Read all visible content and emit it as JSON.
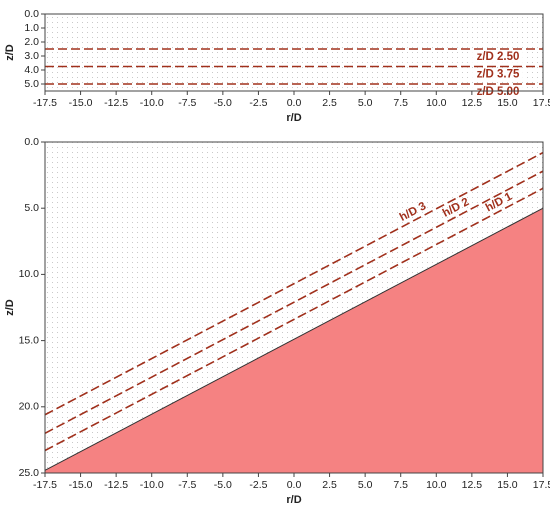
{
  "chart_data": [
    {
      "type": "line",
      "xlabel": "r/D",
      "ylabel": "z/D",
      "y_inverted": true,
      "xlim": [
        -17.5,
        17.5
      ],
      "ylim": [
        0,
        5.5
      ],
      "xticks": [
        {
          "value": -17.5,
          "label": "-17.5"
        },
        {
          "value": -15,
          "label": "-15.0"
        },
        {
          "value": -12.5,
          "label": "-12.5"
        },
        {
          "value": -10,
          "label": "-10.0"
        },
        {
          "value": -7.5,
          "label": "-7.5"
        },
        {
          "value": -5,
          "label": "-5.0"
        },
        {
          "value": -2.5,
          "label": "-2.5"
        },
        {
          "value": 0,
          "label": "0.0"
        },
        {
          "value": 2.5,
          "label": "2.5"
        },
        {
          "value": 5,
          "label": "5.0"
        },
        {
          "value": 7.5,
          "label": "7.5"
        },
        {
          "value": 10,
          "label": "10.0"
        },
        {
          "value": 12.5,
          "label": "12.5"
        },
        {
          "value": 15,
          "label": "15.0"
        },
        {
          "value": 17.5,
          "label": "17.5"
        }
      ],
      "yticks": [
        {
          "value": 0,
          "label": "0.0"
        },
        {
          "value": 1,
          "label": "1.0"
        },
        {
          "value": 2,
          "label": "2.0"
        },
        {
          "value": 3,
          "label": "3.0"
        },
        {
          "value": 4,
          "label": "4.0"
        },
        {
          "value": 5,
          "label": "5.0"
        }
      ],
      "series": [
        {
          "name": "z/D 2.50",
          "color": "#a0301c",
          "x": [
            -17.5,
            17.5
          ],
          "values": [
            2.5,
            2.5
          ]
        },
        {
          "name": "z/D 3.75",
          "color": "#a0301c",
          "x": [
            -17.5,
            17.5
          ],
          "values": [
            3.75,
            3.75
          ]
        },
        {
          "name": "z/D 5.00",
          "color": "#a0301c",
          "x": [
            -17.5,
            17.5
          ],
          "values": [
            5.0,
            5.0
          ]
        }
      ]
    },
    {
      "type": "line",
      "xlabel": "r/D",
      "ylabel": "z/D",
      "y_inverted": true,
      "xlim": [
        -17.5,
        17.5
      ],
      "ylim": [
        0,
        25
      ],
      "xticks": [
        {
          "value": -17.5,
          "label": "-17.5"
        },
        {
          "value": -15,
          "label": "-15.0"
        },
        {
          "value": -12.5,
          "label": "-12.5"
        },
        {
          "value": -10,
          "label": "-10.0"
        },
        {
          "value": -7.5,
          "label": "-7.5"
        },
        {
          "value": -5,
          "label": "-5.0"
        },
        {
          "value": -2.5,
          "label": "-2.5"
        },
        {
          "value": 0,
          "label": "0.0"
        },
        {
          "value": 2.5,
          "label": "2.5"
        },
        {
          "value": 5,
          "label": "5.0"
        },
        {
          "value": 7.5,
          "label": "7.5"
        },
        {
          "value": 10,
          "label": "10.0"
        },
        {
          "value": 12.5,
          "label": "12.5"
        },
        {
          "value": 15,
          "label": "15.0"
        },
        {
          "value": 17.5,
          "label": "17.5"
        }
      ],
      "yticks": [
        {
          "value": 0,
          "label": "0.0"
        },
        {
          "value": 5,
          "label": "5.0"
        },
        {
          "value": 10,
          "label": "10.0"
        },
        {
          "value": 15,
          "label": "15.0"
        },
        {
          "value": 20,
          "label": "20.0"
        },
        {
          "value": 25,
          "label": "25.0"
        }
      ],
      "ground": {
        "color": "#f58282",
        "x": [
          -17.5,
          17.5
        ],
        "values": [
          24.8,
          5.0
        ]
      },
      "series": [
        {
          "name": "h/D 3",
          "color": "#a0301c",
          "x": [
            -17.5,
            17.5
          ],
          "values": [
            20.6,
            0.8
          ]
        },
        {
          "name": "h/D 2",
          "color": "#a0301c",
          "x": [
            -17.5,
            17.5
          ],
          "values": [
            22.0,
            2.2
          ]
        },
        {
          "name": "h/D 1",
          "color": "#a0301c",
          "x": [
            -17.5,
            17.5
          ],
          "values": [
            23.3,
            3.5
          ]
        }
      ]
    }
  ]
}
